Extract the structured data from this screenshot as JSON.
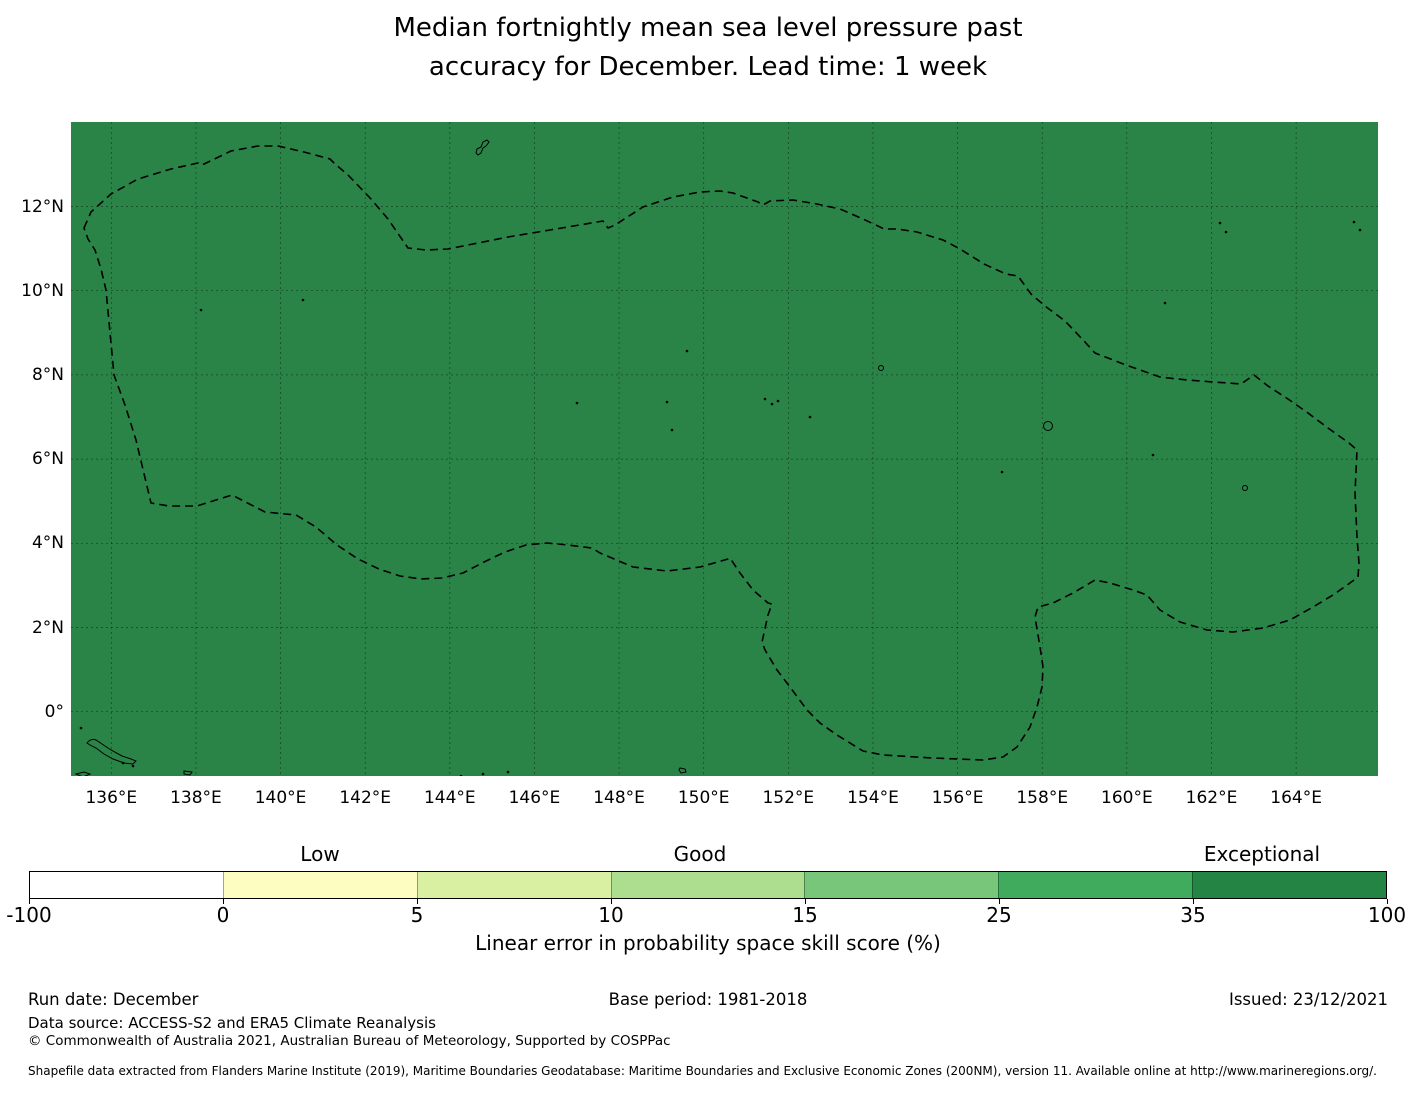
{
  "title": {
    "line1": "Median fortnightly mean sea level pressure past",
    "line2": "accuracy for December. Lead time: 1 week"
  },
  "map": {
    "lat_ticks": [
      "12°N",
      "10°N",
      "8°N",
      "6°N",
      "4°N",
      "2°N",
      "0°"
    ],
    "lon_ticks": [
      "136°E",
      "138°E",
      "140°E",
      "142°E",
      "144°E",
      "146°E",
      "148°E",
      "150°E",
      "152°E",
      "154°E",
      "156°E",
      "158°E",
      "160°E",
      "162°E",
      "164°E"
    ],
    "fill_color": "#2b8447",
    "boundary_style": "dashed black maritime boundary",
    "grid": "dashed 2-degree graticule"
  },
  "colorbar": {
    "category_labels": [
      "Low",
      "Good",
      "Exceptional"
    ],
    "tick_labels": [
      "-100",
      "0",
      "5",
      "10",
      "15",
      "25",
      "35",
      "100"
    ],
    "colors": [
      "#ffffff",
      "#fdfdc2",
      "#d9f0a3",
      "#addd8e",
      "#78c679",
      "#41ab5d",
      "#238443"
    ],
    "label": "Linear error in probability space skill score (%)"
  },
  "footer": {
    "run_date": "Run date: December",
    "base_period": "Base period: 1981-2018",
    "issued": "Issued: 23/12/2021",
    "data_source": "Data source: ACCESS-S2 and ERA5 Climate Reanalysis",
    "copyright": "© Commonwealth of Australia 2021, Australian Bureau of Meteorology, Supported by COSPPac",
    "shapefile": "Shapefile data extracted from Flanders Marine Institute (2019), Maritime Boundaries Geodatabase: Maritime Boundaries and Exclusive Economic Zones (200NM), version 11. Available online at http://www.marineregions.org/."
  },
  "chart_data": {
    "type": "heatmap",
    "title": "Median fortnightly mean sea level pressure past accuracy for December. Lead time: 1 week",
    "x_axis": {
      "tick_labels": [
        "136°E",
        "138°E",
        "140°E",
        "142°E",
        "144°E",
        "146°E",
        "148°E",
        "150°E",
        "152°E",
        "154°E",
        "156°E",
        "158°E",
        "160°E",
        "162°E",
        "164°E"
      ],
      "range_deg_east": [
        135.1,
        166.0
      ]
    },
    "y_axis": {
      "tick_labels": [
        "12°N",
        "10°N",
        "8°N",
        "6°N",
        "4°N",
        "2°N",
        "0°"
      ],
      "range_deg_north": [
        -1.5,
        14.0
      ]
    },
    "value_label": "Linear error in probability space skill score (%)",
    "bins": [
      [
        -100,
        0
      ],
      [
        0,
        5
      ],
      [
        5,
        10
      ],
      [
        10,
        15
      ],
      [
        15,
        25
      ],
      [
        25,
        35
      ],
      [
        35,
        100
      ]
    ],
    "bin_colors": [
      "#ffffff",
      "#fdfdc2",
      "#d9f0a3",
      "#addd8e",
      "#78c679",
      "#41ab5d",
      "#238443"
    ],
    "bin_category_positions": {
      "Low": "0 to 5",
      "Good": "10 to 15",
      "Exceptional": "35 to 100"
    },
    "map_values": "Entire mapped region is shaded in the 35-100 (Exceptional) dark-green bin",
    "overlays": [
      "dashed EEZ maritime boundary polygon",
      "small island coastlines (Guam, Yap, Chuuk, Pohnpei, Kosrae area and islands near bottom-left)",
      "dashed lon/lat grid every 2 degrees"
    ],
    "legend_position": "horizontal colorbar below map",
    "grid": true
  }
}
